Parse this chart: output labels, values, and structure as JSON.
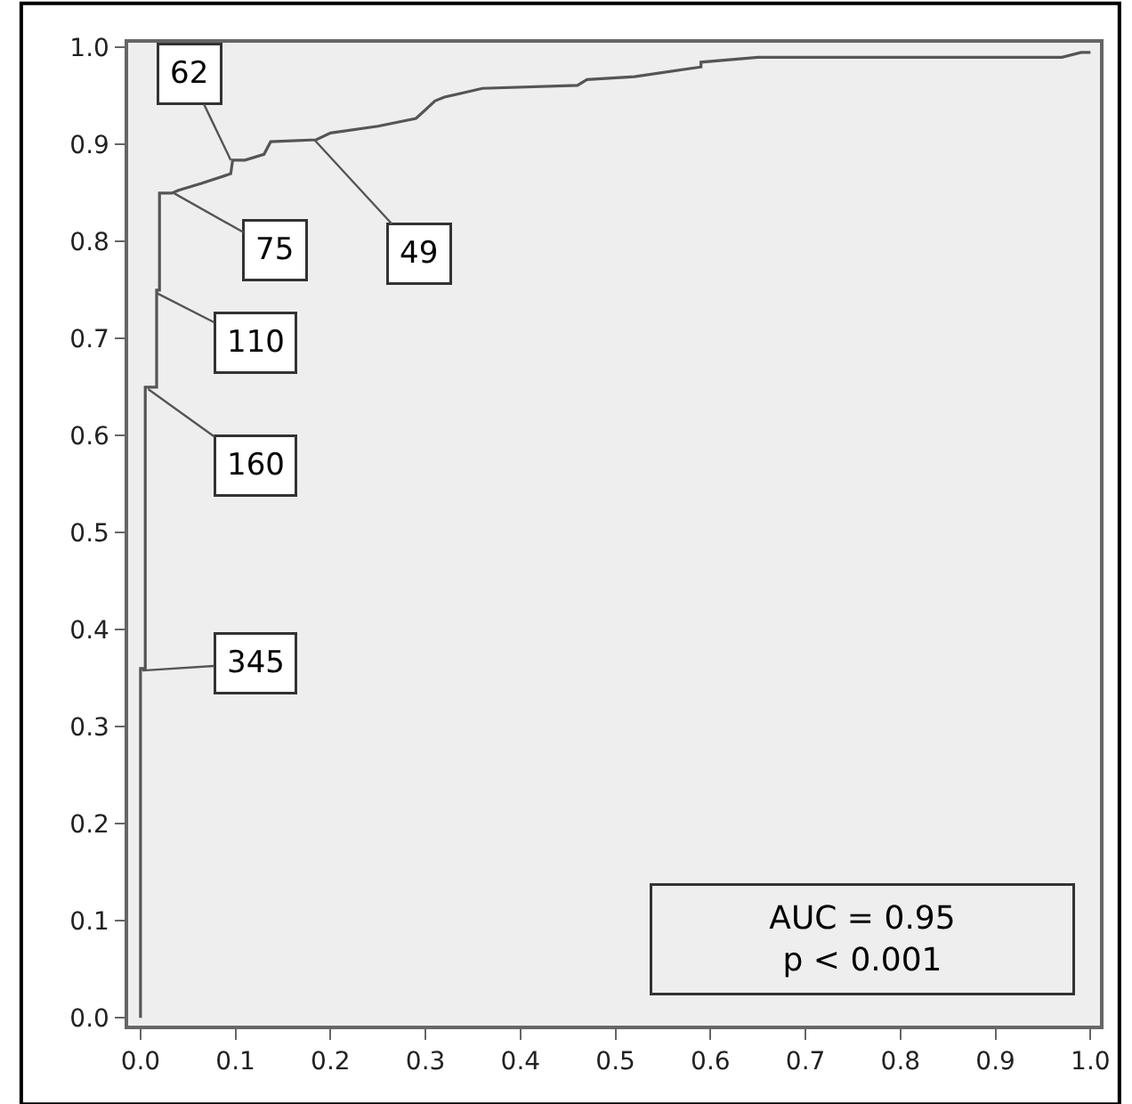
{
  "chart_data": {
    "type": "line",
    "x": [
      0,
      0,
      0.005,
      0.005,
      0.017,
      0.017,
      0.02,
      0.02,
      0.033,
      0.04,
      0.064,
      0.095,
      0.097,
      0.11,
      0.13,
      0.137,
      0.185,
      0.2,
      0.25,
      0.29,
      0.3,
      0.31,
      0.32,
      0.36,
      0.46,
      0.47,
      0.52,
      0.59,
      0.59,
      0.65,
      0.66,
      0.97,
      0.99,
      1.0
    ],
    "series": [
      {
        "color": "#555555",
        "values": [
          0,
          0.36,
          0.36,
          0.65,
          0.65,
          0.75,
          0.75,
          0.85,
          0.85,
          0.853,
          0.86,
          0.87,
          0.884,
          0.884,
          0.89,
          0.903,
          0.905,
          0.912,
          0.919,
          0.927,
          0.936,
          0.945,
          0.949,
          0.958,
          0.961,
          0.967,
          0.97,
          0.98,
          0.985,
          0.99,
          0.99,
          0.99,
          0.995,
          0.995
        ]
      }
    ],
    "xlim": [
      -0.013,
      1.01
    ],
    "ylim": [
      -0.008,
      1.005
    ],
    "xticks": [
      {
        "value": 0,
        "label": "0.0"
      },
      0.1,
      0.2,
      0.3,
      0.4,
      0.5,
      0.6,
      0.7,
      0.8,
      0.9,
      {
        "value": 1,
        "label": "1.0"
      }
    ],
    "yticks": [
      {
        "value": 0,
        "label": "0.0"
      },
      0.1,
      0.2,
      0.3,
      0.4,
      0.5,
      0.6,
      0.7,
      0.8,
      0.9,
      {
        "value": 1,
        "label": "1.0"
      }
    ],
    "grid": false,
    "marker": "none",
    "line_style": "solid",
    "annotations": [
      {
        "text": "62",
        "x": 0.095,
        "y": 0.884
      },
      {
        "text": "49",
        "x": 0.183,
        "y": 0.905
      },
      {
        "text": "75",
        "x": 0.035,
        "y": 0.85
      },
      {
        "text": "110",
        "x": 0.017,
        "y": 0.747
      },
      {
        "text": "160",
        "x": 0.008,
        "y": 0.648
      },
      {
        "text": "345",
        "x": 0.002,
        "y": 0.358
      },
      "AUC = 0.95\np < 0.001"
    ]
  }
}
